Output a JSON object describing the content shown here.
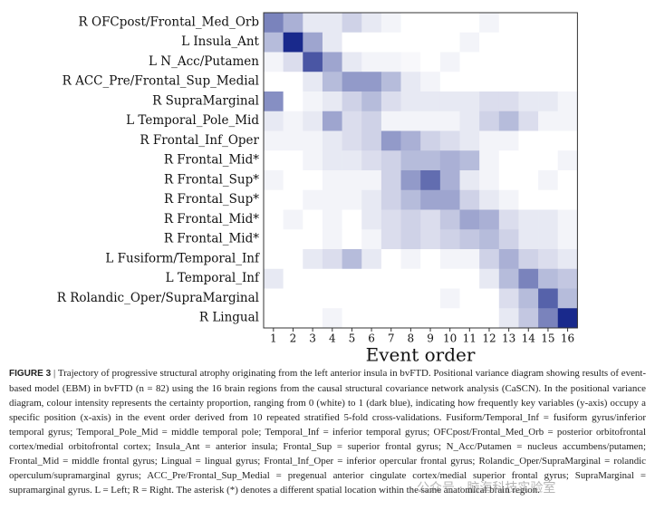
{
  "chart_data": {
    "type": "heatmap",
    "rows": [
      "R OFCpost/Frontal_Med_Orb",
      "L Insula_Ant",
      "L N_Acc/Putamen",
      "R ACC_Pre/Frontal_Sup_Medial",
      "R SupraMarginal",
      "L Temporal_Pole_Mid",
      "R Frontal_Inf_Oper",
      "R Frontal_Mid*",
      "R Frontal_Sup*",
      "R Frontal_Sup*",
      "R Frontal_Mid*",
      "R Frontal_Mid*",
      "L Fusiform/Temporal_Inf",
      "L Temporal_Inf",
      "R Rolandic_Oper/SupraMarginal",
      "R Lingual"
    ],
    "columns": [
      1,
      2,
      3,
      4,
      5,
      6,
      7,
      8,
      9,
      10,
      11,
      12,
      13,
      14,
      15,
      16
    ],
    "x_label": "Event order",
    "colormap": [
      "#ffffff",
      "#0d1e86"
    ],
    "clim": [
      0,
      1
    ],
    "values": [
      [
        0.55,
        0.35,
        0.1,
        0.1,
        0.2,
        0.1,
        0.05,
        0,
        0,
        0,
        0,
        0.05,
        0,
        0,
        0,
        0
      ],
      [
        0.3,
        0.95,
        0.4,
        0.1,
        0,
        0,
        0,
        0,
        0,
        0,
        0.05,
        0,
        0,
        0,
        0,
        0
      ],
      [
        0.05,
        0.15,
        0.75,
        0.4,
        0.1,
        0.05,
        0.05,
        0.03,
        0,
        0.05,
        0,
        0,
        0,
        0,
        0,
        0
      ],
      [
        0,
        0,
        0.1,
        0.3,
        0.45,
        0.45,
        0.3,
        0.1,
        0.05,
        0,
        0,
        0,
        0,
        0,
        0,
        0
      ],
      [
        0.5,
        0,
        0.05,
        0.1,
        0.2,
        0.3,
        0.15,
        0.1,
        0.1,
        0.1,
        0.1,
        0.15,
        0.15,
        0.1,
        0.1,
        0.05
      ],
      [
        0.1,
        0.05,
        0.1,
        0.4,
        0.15,
        0.2,
        0.05,
        0.05,
        0.05,
        0.05,
        0.1,
        0.2,
        0.3,
        0.15,
        0.05,
        0.05
      ],
      [
        0.05,
        0.05,
        0.05,
        0.1,
        0.15,
        0.2,
        0.45,
        0.35,
        0.2,
        0.15,
        0.1,
        0.05,
        0.05,
        0,
        0,
        0
      ],
      [
        0,
        0,
        0.05,
        0.1,
        0.1,
        0.15,
        0.2,
        0.3,
        0.3,
        0.35,
        0.3,
        0.05,
        0,
        0,
        0,
        0.05
      ],
      [
        0.05,
        0,
        0,
        0.05,
        0.05,
        0.05,
        0.2,
        0.45,
        0.65,
        0.35,
        0.1,
        0.05,
        0,
        0,
        0.05,
        0
      ],
      [
        0,
        0,
        0.05,
        0.05,
        0.05,
        0.1,
        0.2,
        0.3,
        0.4,
        0.4,
        0.2,
        0.1,
        0.05,
        0,
        0,
        0
      ],
      [
        0,
        0.05,
        0,
        0.05,
        0,
        0.1,
        0.15,
        0.2,
        0.15,
        0.25,
        0.4,
        0.35,
        0.15,
        0.1,
        0.1,
        0.05
      ],
      [
        0,
        0,
        0,
        0.05,
        0,
        0.05,
        0.15,
        0.2,
        0.15,
        0.2,
        0.25,
        0.3,
        0.2,
        0.1,
        0.1,
        0.05
      ],
      [
        0,
        0,
        0.1,
        0.15,
        0.3,
        0.1,
        0,
        0.05,
        0,
        0.05,
        0.05,
        0.2,
        0.35,
        0.2,
        0.15,
        0.1
      ],
      [
        0.1,
        0,
        0,
        0,
        0,
        0,
        0,
        0,
        0,
        0,
        0,
        0.1,
        0.3,
        0.55,
        0.3,
        0.25
      ],
      [
        0,
        0,
        0,
        0,
        0,
        0,
        0,
        0,
        0,
        0.05,
        0,
        0,
        0.15,
        0.3,
        0.7,
        0.3
      ],
      [
        0,
        0,
        0,
        0.05,
        0,
        0,
        0,
        0,
        0,
        0,
        0,
        0,
        0.1,
        0.25,
        0.55,
        0.95
      ]
    ]
  },
  "caption": {
    "label": "FIGURE 3",
    "separator": "|",
    "text": "Trajectory of progressive structural atrophy originating from the left anterior insula in bvFTD. Positional variance diagram showing results of event-based model (EBM) in bvFTD (n = 82) using the 16 brain regions from the causal structural covariance network analysis (CaSCN). In the positional variance diagram, colour intensity represents the certainty proportion, ranging from 0 (white) to 1 (dark blue), indicating how frequently key variables (y-axis) occupy a specific position (x-axis) in the event order derived from 10 repeated stratified 5-fold cross-validations. Fusiform/Temporal_Inf = fusiform gyrus/inferior temporal gyrus; Temporal_Pole_Mid = middle temporal pole; Temporal_Inf = inferior temporal gyrus; OFCpost/Frontal_Med_Orb = posterior orbitofrontal cortex/medial orbitofrontal cortex; Insula_Ant = anterior insula; Frontal_Sup = superior frontal gyrus; N_Acc/Putamen = nucleus accumbens/putamen; Frontal_Mid = middle frontal gyrus; Lingual = lingual gyrus; Frontal_Inf_Oper = inferior opercular frontal gyrus; Rolandic_Oper/SupraMarginal = rolandic operculum/supramarginal gyrus; ACC_Pre/Frontal_Sup_Medial = pregenual anterior cingulate cortex/medial superior frontal gyrus; SupraMarginal = supramarginal gyrus. L = Left; R = Right. The asterisk (*) denotes a different spatial location within the same anatomical brain region."
  },
  "watermark": "公众号 · 脑海科技实验室"
}
